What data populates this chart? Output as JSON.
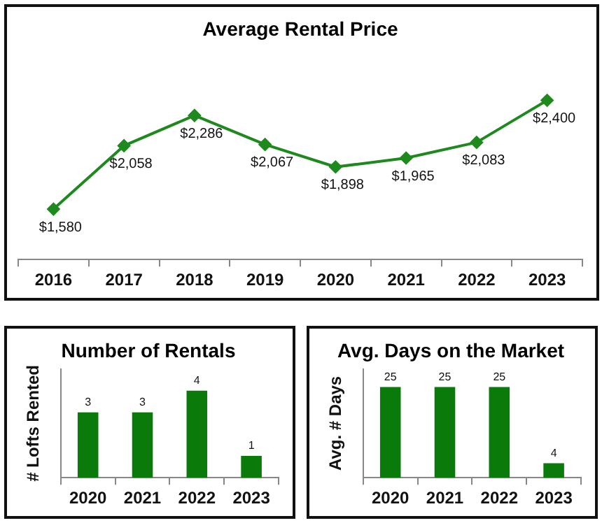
{
  "chart_data": [
    {
      "type": "line",
      "title": "Average Rental Price",
      "categories": [
        "2016",
        "2017",
        "2018",
        "2019",
        "2020",
        "2021",
        "2022",
        "2023"
      ],
      "values": [
        1580,
        2058,
        2286,
        2067,
        1898,
        1965,
        2083,
        2400
      ],
      "value_labels": [
        "$1,580",
        "$2,058",
        "$2,286",
        "$2,067",
        "$1,898",
        "$1,965",
        "$2,083",
        "$2,400"
      ],
      "color": "#1e8a1e",
      "marker": "diamond"
    },
    {
      "type": "bar",
      "title": "Number of Rentals",
      "ylabel": "# Lofts Rented",
      "categories": [
        "2020",
        "2021",
        "2022",
        "2023"
      ],
      "values": [
        3,
        3,
        4,
        1
      ],
      "color": "#0a7a0a",
      "data_labels": true
    },
    {
      "type": "bar",
      "title": "Avg. Days on the Market",
      "ylabel": "Avg. # Days",
      "categories": [
        "2020",
        "2021",
        "2022",
        "2023"
      ],
      "values": [
        25,
        25,
        25,
        4
      ],
      "color": "#0a7a0a",
      "data_labels": true
    }
  ]
}
